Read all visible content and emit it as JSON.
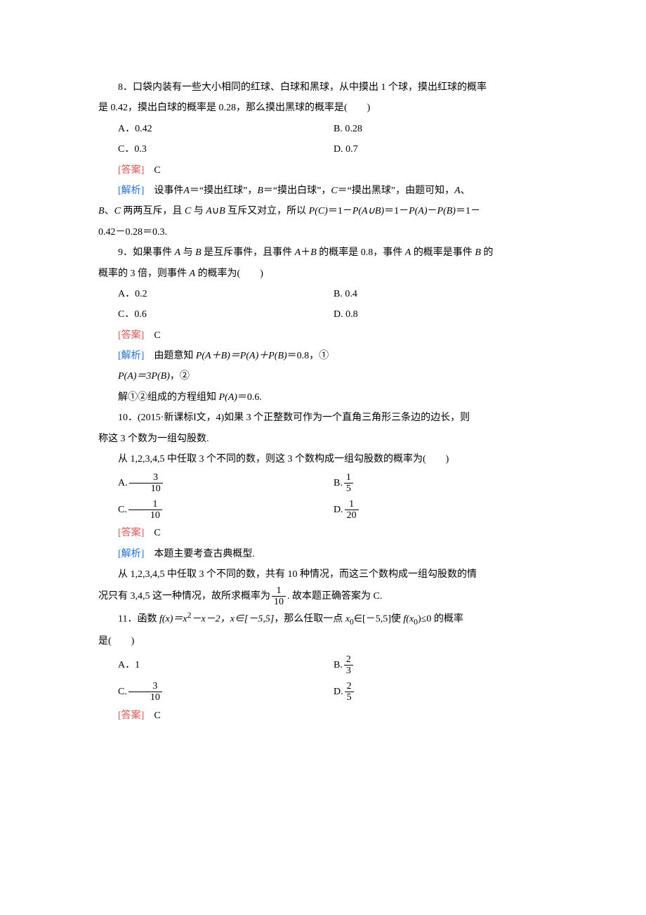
{
  "colors": {
    "answer": "#d9534f",
    "analysis": "#1f6fd6",
    "text": "#000000",
    "bg": "#ffffff"
  },
  "typography": {
    "base_fontsize_pt": 10.5,
    "line_height": 2.1,
    "font_family": "SimSun"
  },
  "labels": {
    "answer": "[答案]",
    "analysis": "[解析]"
  },
  "q8": {
    "stem1": "8．口袋内装有一些大小相同的红球、白球和黑球，从中摸出 1 个球，摸出红球的概率",
    "stem2": "是 0.42，摸出白球的概率是 0.28，那么摸出黑球的概率是(　　)",
    "optA": "A．0.42",
    "optB": "B. 0.28",
    "optC": "C．0.3",
    "optD": "D. 0.7",
    "ansLetter": "C",
    "exp1_pre": "设事件",
    "exp1_A": "A",
    "exp1_mid1": "＝“摸出红球”，",
    "exp1_B": "B",
    "exp1_mid2": "＝“摸出白球”，",
    "exp1_C": "C",
    "exp1_mid3": "＝“摸出黑球”，由题可知，",
    "exp1_tail": "、",
    "exp2_p1": "、",
    "exp2_p2": " 两两互斥，且 ",
    "exp2_p3": " 与 ",
    "exp2_p4": "∪",
    "exp2_p5": " 互斥又对立，所以 ",
    "exp2_pc": "P(C)",
    "exp2_eq1": "＝1－",
    "exp2_pab": "P(A∪B)",
    "exp2_eq2": "＝1－",
    "exp2_pa": "P(A)",
    "exp2_minus": "－",
    "exp2_pb": "P(B)",
    "exp2_eq3": "＝1－",
    "exp3": "0.42－0.28＝0.3."
  },
  "q9": {
    "stem1_p1": "9．如果事件 ",
    "stem1_p2": " 与 ",
    "stem1_p3": " 是互斥事件，且事件 ",
    "stem1_p4": "＋",
    "stem1_p5": " 的概率是 0.8，事件 ",
    "stem1_p6": " 的概率是事件 ",
    "stem1_p7": " 的",
    "stem2_p1": "概率的 3 倍，则事件 ",
    "stem2_p2": " 的概率为(　　)",
    "optA": "A．0.2",
    "optB": "B. 0.4",
    "optC": "C．0.6",
    "optD": "D. 0.8",
    "ansLetter": "C",
    "exp_line1_pre": "由题意知 ",
    "exp_line1_e1": "P(A＋B)＝P(A)＋P(B)",
    "exp_line1_post": "＝0.8，①",
    "exp_line2_e": "P(A)＝3P(B)",
    "exp_line2_post": "，②",
    "exp_line3_pre": "解①②组成的方程组知 ",
    "exp_line3_e": "P(A)",
    "exp_line3_post": "＝0.6."
  },
  "q10": {
    "stem1": "10．(2015·新课标Ⅰ文，4)如果 3 个正整数可作为一个直角三角形三条边的边长，则",
    "stem2": "称这 3 个数为一组勾股数.",
    "stem3": "从 1,2,3,4,5 中任取 3 个不同的数，则这 3 个数构成一组勾股数的概率为(　　)",
    "optA_pre": "A.",
    "optA_num": "3",
    "optA_den": "10",
    "optB_pre": "B.",
    "optB_num": "1",
    "optB_den": "5",
    "optC_pre": "C.",
    "optC_num": "1",
    "optC_den": "10",
    "optD_pre": "D.",
    "optD_num": "1",
    "optD_den": "20",
    "ansLetter": "C",
    "exp1": "本题主要考查古典概型.",
    "exp2": "从 1,2,3,4,5 中任取 3 个不同的数，共有 10 种情况，而这三个数构成一组勾股数的情",
    "exp3_p1": "况只有 3,4,5 这一种情况，故所求概率为",
    "exp3_num": "1",
    "exp3_den": "10",
    "exp3_p2": ". 故本题正确答案为 C."
  },
  "q11": {
    "stem1_p1": "11．函数 ",
    "stem1_fx": "f(x)＝x",
    "stem1_sq": "2",
    "stem1_p2": "－x－2，",
    "stem1_xin": "x∈[－5,5]",
    "stem1_p3": "，那么任取一点 ",
    "stem1_x0": "x",
    "stem1_sub0a": "0",
    "stem1_p4": "∈[－5,5]使 ",
    "stem1_fxx": "f(x",
    "stem1_sub0b": "0",
    "stem1_p5": ")≤0 的概率",
    "stem2": "是(　　)",
    "optA": "A．1",
    "optB_pre": "B.",
    "optB_num": "2",
    "optB_den": "3",
    "optC_pre": "C.",
    "optC_num": "3",
    "optC_den": "10",
    "optD_pre": "D.",
    "optD_num": "2",
    "optD_den": "5",
    "ansLetter": "C"
  }
}
